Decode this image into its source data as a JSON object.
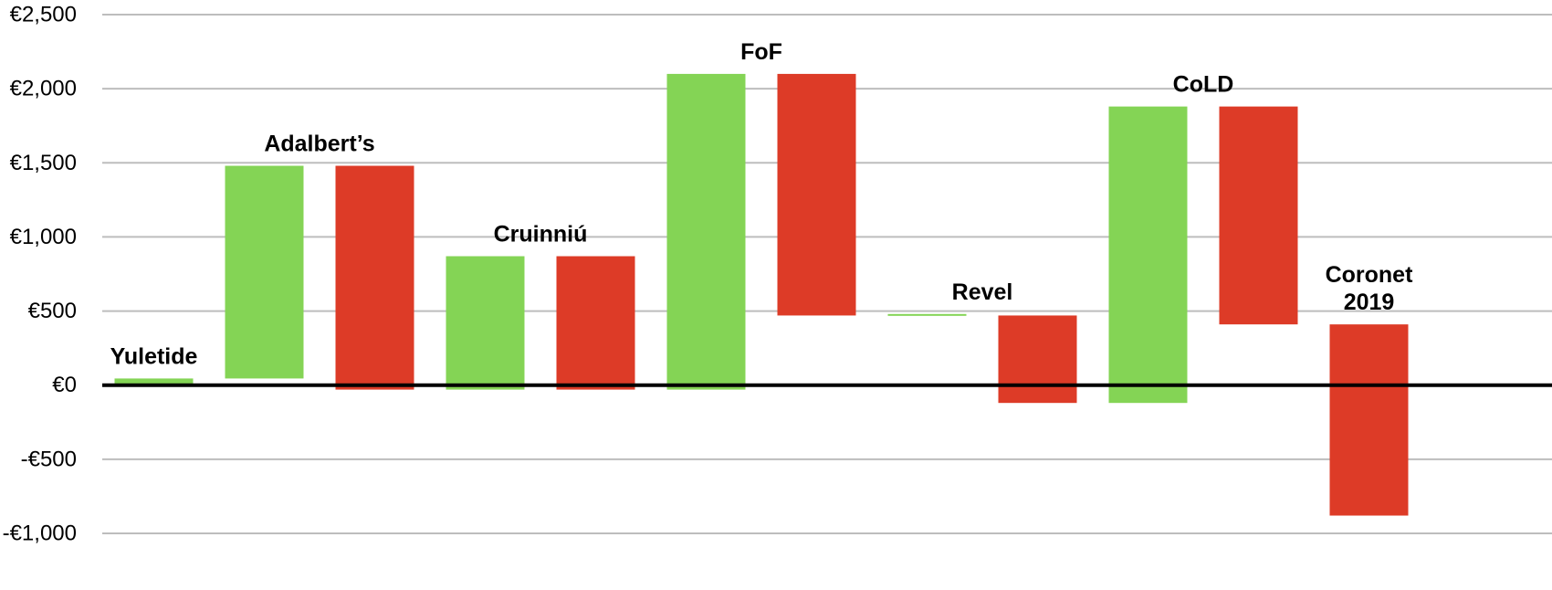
{
  "chart_data": {
    "type": "bar",
    "variant": "waterfall",
    "title": "",
    "xlabel": "",
    "ylabel": "",
    "ylim": [
      -1000,
      2500
    ],
    "yticks": [
      -1000,
      -500,
      0,
      500,
      1000,
      1500,
      2000,
      2500
    ],
    "ytick_labels": [
      "-€1,000",
      "-€500",
      "€0",
      "€500",
      "€1,000",
      "€1,500",
      "€2,000",
      "€2,500"
    ],
    "grid": true,
    "legend": "none",
    "colors": {
      "income": "#84d455",
      "expense": "#dd3b27",
      "grid": "#bdbdbd",
      "zero_line": "#000000"
    },
    "bars": [
      {
        "kind": "income",
        "start": 0,
        "end": 45
      },
      {
        "kind": "income",
        "start": 45,
        "end": 1480
      },
      {
        "kind": "expense",
        "start": 1480,
        "end": -30
      },
      {
        "kind": "income",
        "start": -30,
        "end": 870
      },
      {
        "kind": "expense",
        "start": 870,
        "end": -30
      },
      {
        "kind": "income",
        "start": -30,
        "end": 2100
      },
      {
        "kind": "expense",
        "start": 2100,
        "end": 470
      },
      {
        "kind": "income",
        "start": 470,
        "end": 480
      },
      {
        "kind": "expense",
        "start": 470,
        "end": -120
      },
      {
        "kind": "income",
        "start": -120,
        "end": 1880
      },
      {
        "kind": "expense",
        "start": 1880,
        "end": 410
      },
      {
        "kind": "expense",
        "start": 410,
        "end": -880
      }
    ],
    "annotations": [
      {
        "lines": [
          "Yuletide"
        ],
        "bar_index": 0
      },
      {
        "lines": [
          "Adalbert’s"
        ],
        "bar_index": 1.5
      },
      {
        "lines": [
          "Cruinniú"
        ],
        "bar_index": 3.5
      },
      {
        "lines": [
          "FoF"
        ],
        "bar_index": 5.5
      },
      {
        "lines": [
          "Revel"
        ],
        "bar_index": 7.5
      },
      {
        "lines": [
          "CoLD"
        ],
        "bar_index": 9.5
      },
      {
        "lines": [
          "Coronet",
          "2019"
        ],
        "bar_index": 11
      }
    ]
  }
}
